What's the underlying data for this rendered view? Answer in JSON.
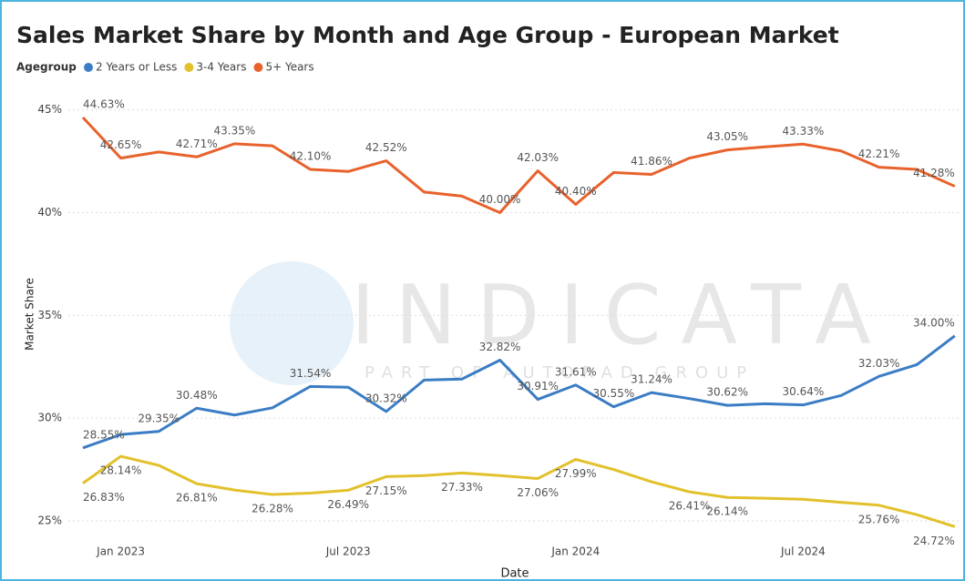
{
  "chart_data": {
    "type": "line",
    "title": "Sales Market Share by Month and Age Group - European Market",
    "legend_title": "Agegroup",
    "xlabel": "Date",
    "ylabel": "Market Share",
    "watermark": {
      "brand": "INDICATA",
      "tagline": "PART OF AUTORAD GROUP"
    },
    "x": [
      "2022-12",
      "2023-01",
      "2023-02",
      "2023-03",
      "2023-04",
      "2023-05",
      "2023-06",
      "2023-07",
      "2023-08",
      "2023-09",
      "2023-10",
      "2023-11",
      "2023-12",
      "2024-01",
      "2024-02",
      "2024-03",
      "2024-04",
      "2024-05",
      "2024-06",
      "2024-07",
      "2024-08",
      "2024-09",
      "2024-10",
      "2024-11"
    ],
    "xticks": [
      {
        "value": "2023-01",
        "label": "Jan 2023"
      },
      {
        "value": "2023-07",
        "label": "Jul 2023"
      },
      {
        "value": "2024-01",
        "label": "Jan 2024"
      },
      {
        "value": "2024-07",
        "label": "Jul 2024"
      }
    ],
    "ylim": [
      24.2,
      45.9
    ],
    "yticks": [
      {
        "value": 25,
        "label": "25%"
      },
      {
        "value": 30,
        "label": "30%"
      },
      {
        "value": 35,
        "label": "35%"
      },
      {
        "value": 40,
        "label": "40%"
      },
      {
        "value": 45,
        "label": "45%"
      }
    ],
    "grid": true,
    "series": [
      {
        "name": "2 Years or Less",
        "color": "#3b7dc4",
        "values": [
          28.55,
          29.2,
          29.35,
          30.48,
          30.15,
          30.5,
          31.54,
          31.5,
          30.32,
          31.85,
          31.9,
          32.82,
          30.91,
          31.61,
          30.55,
          31.24,
          30.95,
          30.62,
          30.7,
          30.64,
          31.1,
          32.03,
          32.6,
          34.0
        ],
        "value_labels": [
          "28.55%",
          null,
          "29.35%",
          "30.48%",
          null,
          null,
          "31.54%",
          null,
          "30.32%",
          null,
          null,
          "32.82%",
          "30.91%",
          "31.61%",
          "30.55%",
          "31.24%",
          null,
          "30.62%",
          null,
          "30.64%",
          null,
          "32.03%",
          null,
          "34.00%"
        ]
      },
      {
        "name": "3-4 Years",
        "color": "#e2c12c",
        "values": [
          26.83,
          28.14,
          27.7,
          26.81,
          26.5,
          26.28,
          26.35,
          26.49,
          27.15,
          27.2,
          27.33,
          27.2,
          27.06,
          27.99,
          27.5,
          26.9,
          26.41,
          26.14,
          26.1,
          26.05,
          25.9,
          25.76,
          25.3,
          24.72
        ],
        "value_labels": [
          "26.83%",
          "28.14%",
          null,
          "26.81%",
          null,
          "26.28%",
          null,
          "26.49%",
          "27.15%",
          null,
          "27.33%",
          null,
          "27.06%",
          "27.99%",
          null,
          null,
          "26.41%",
          "26.14%",
          null,
          null,
          null,
          "25.76%",
          null,
          "24.72%"
        ]
      },
      {
        "name": "5+ Years",
        "color": "#e8622c",
        "values": [
          44.63,
          42.65,
          42.95,
          42.71,
          43.35,
          43.25,
          42.1,
          42.0,
          42.52,
          41.0,
          40.8,
          40.0,
          42.03,
          40.4,
          41.95,
          41.86,
          42.65,
          43.05,
          43.2,
          43.33,
          43.0,
          42.21,
          42.1,
          41.28
        ],
        "value_labels": [
          "44.63%",
          "42.65%",
          null,
          "42.71%",
          "43.35%",
          null,
          "42.10%",
          null,
          "42.52%",
          null,
          null,
          "40.00%",
          "42.03%",
          "40.40%",
          null,
          "41.86%",
          null,
          "43.05%",
          null,
          "43.33%",
          null,
          "42.21%",
          null,
          "41.28%"
        ]
      }
    ]
  }
}
